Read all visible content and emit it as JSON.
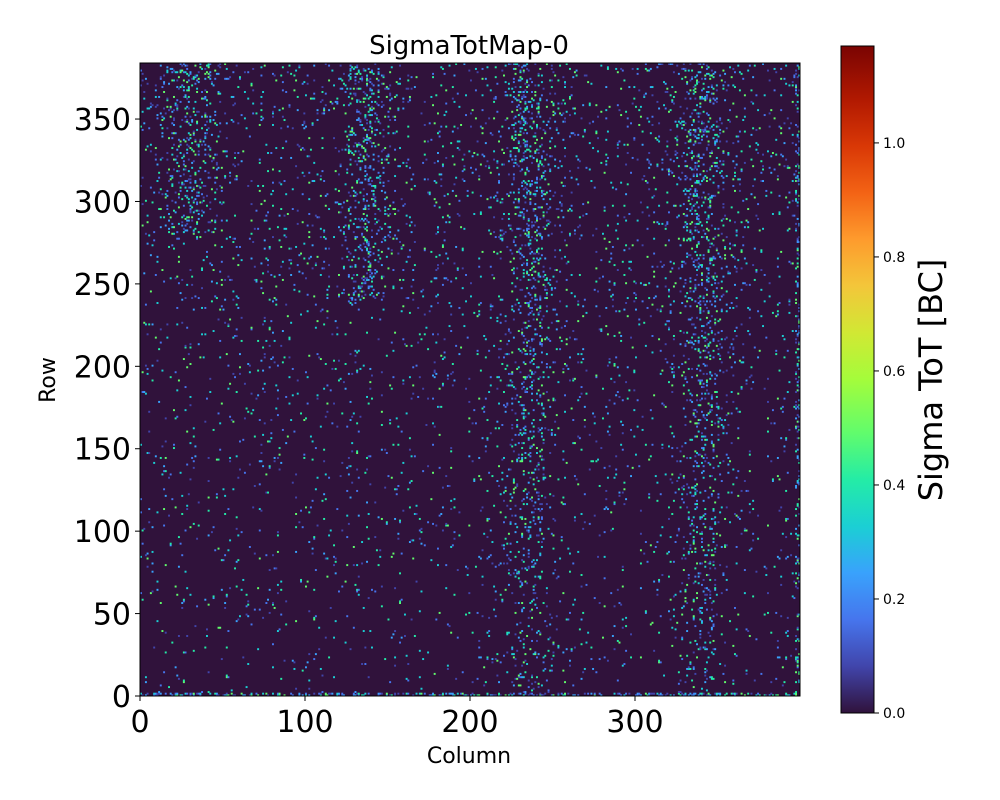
{
  "chart_data": {
    "type": "heatmap",
    "title": "SigmaTotMap-0",
    "xlabel": "Column",
    "ylabel": "Row",
    "xlim": [
      0,
      400
    ],
    "ylim": [
      0,
      384
    ],
    "xticks": [
      0,
      100,
      200,
      300
    ],
    "yticks": [
      0,
      50,
      100,
      150,
      200,
      250,
      300,
      350
    ],
    "colorbar": {
      "label": "Sigma ToT [BC]",
      "range": [
        0.0,
        1.17
      ],
      "ticks": [
        "0.0",
        "0.2",
        "0.4",
        "0.6",
        "0.8",
        "1.0"
      ],
      "colormap": "turbo"
    },
    "background_color": "#30123b",
    "hotspot_bands_columns": [
      {
        "center": 30,
        "row_range": [
          280,
          384
        ]
      },
      {
        "center": 135,
        "row_range": [
          240,
          384
        ]
      },
      {
        "center": 235,
        "row_range": [
          0,
          384
        ]
      },
      {
        "center": 340,
        "row_range": [
          0,
          384
        ]
      }
    ],
    "grid": false
  }
}
